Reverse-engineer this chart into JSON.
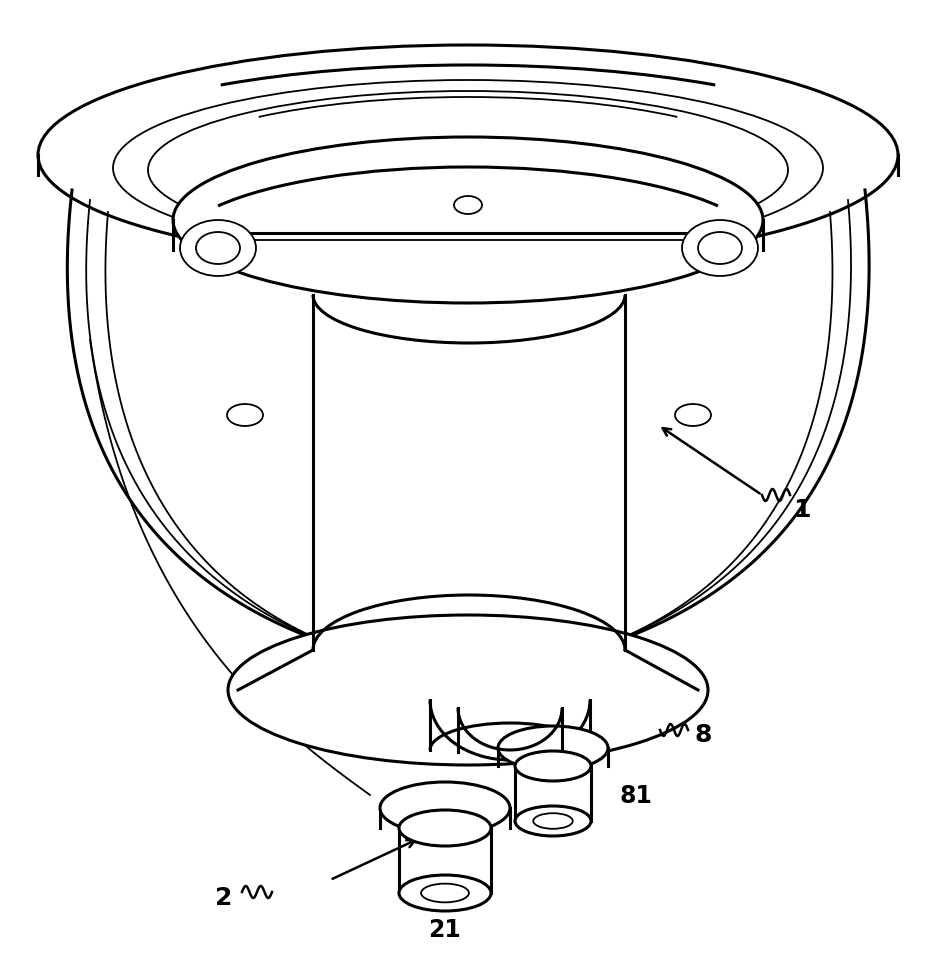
{
  "bg_color": "#ffffff",
  "line_color": "#000000",
  "lw": 2.2,
  "tlw": 1.3,
  "fig_width": 9.37,
  "fig_height": 9.74,
  "dpi": 100
}
